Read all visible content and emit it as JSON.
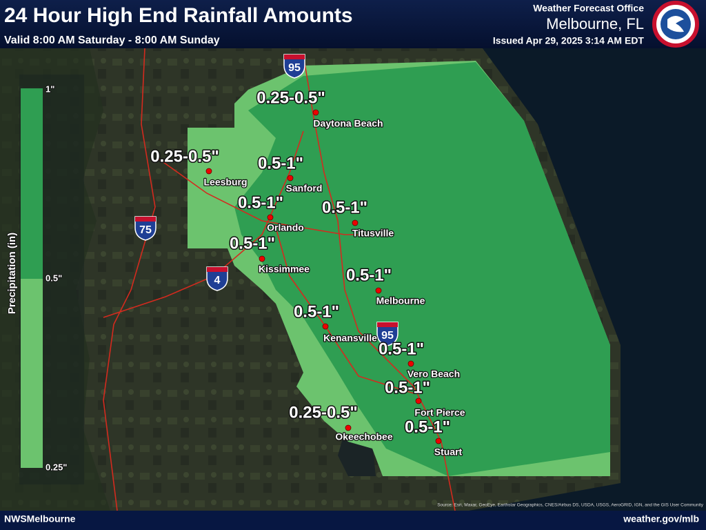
{
  "header": {
    "title": "24 Hour High End Rainfall Amounts",
    "subtitle": "Valid 8:00 AM Saturday - 8:00 AM Sunday",
    "office": "Weather Forecast Office",
    "location": "Melbourne, FL",
    "issued": "Issued Apr 29, 2025 3:14 AM EDT"
  },
  "legend": {
    "title": "Precipitation (in)",
    "labels": [
      "1\"",
      "0.5\"",
      "0.25\""
    ]
  },
  "cities": [
    {
      "name": "Daytona Beach",
      "amount": "0.25-0.5\""
    },
    {
      "name": "Leesburg",
      "amount": "0.25-0.5\""
    },
    {
      "name": "Sanford",
      "amount": "0.5-1\""
    },
    {
      "name": "Orlando",
      "amount": "0.5-1\""
    },
    {
      "name": "Titusville",
      "amount": "0.5-1\""
    },
    {
      "name": "Kissimmee",
      "amount": "0.5-1\""
    },
    {
      "name": "Melbourne",
      "amount": "0.5-1\""
    },
    {
      "name": "Kenansville",
      "amount": "0.5-1\""
    },
    {
      "name": "Vero Beach",
      "amount": "0.5-1\""
    },
    {
      "name": "Fort Pierce",
      "amount": "0.5-1\""
    },
    {
      "name": "Okeechobee",
      "amount": "0.25-0.5\""
    },
    {
      "name": "Stuart",
      "amount": "0.5-1\""
    }
  ],
  "highways": [
    "95",
    "75",
    "4",
    "95"
  ],
  "footer": {
    "left": "NWSMelbourne",
    "right": "weather.gov/mlb",
    "attribution": "Source: Esri, Maxar, GeoEye, Earthstar Geographics, CNES/Airbus DS, USDA, USGS, AeroGRID, IGN, and the GIS User Community"
  }
}
